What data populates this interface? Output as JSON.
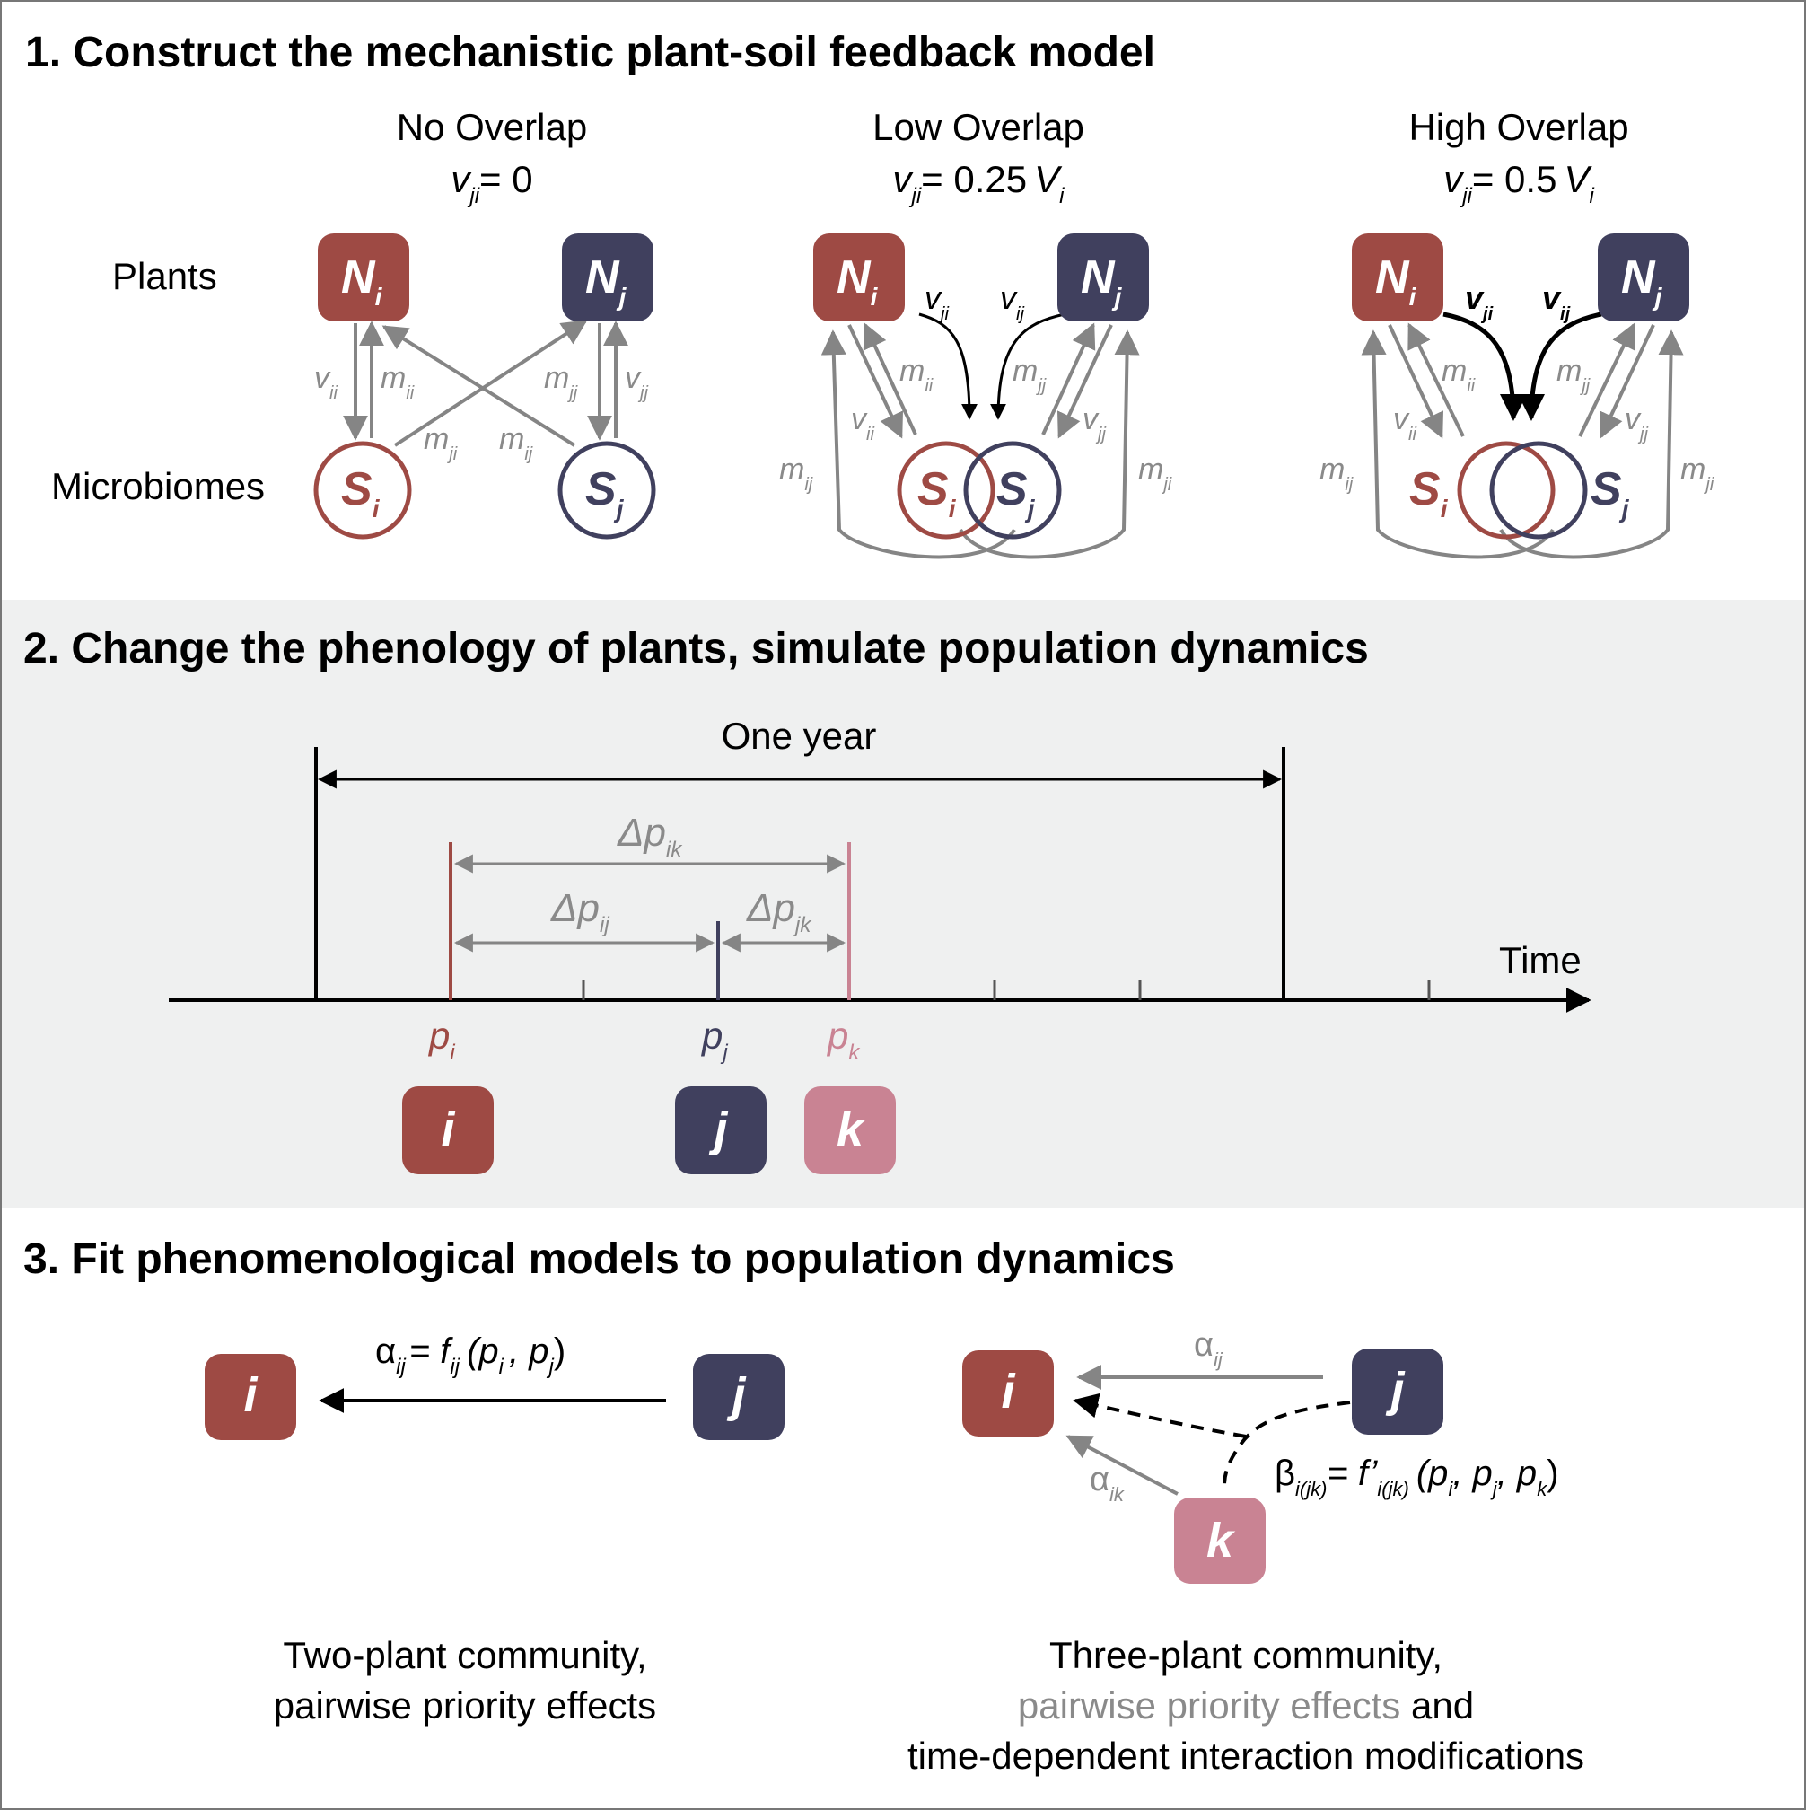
{
  "colors": {
    "plant_i": "#9e4a44",
    "plant_j": "#40405e",
    "plant_k": "#c98393",
    "gray_arrow": "#858585",
    "band_bg": "#eff0f0"
  },
  "section1": {
    "title": "1. Construct the mechanistic plant-soil feedback model",
    "row_plants": "Plants",
    "row_microbiomes": "Microbiomes",
    "panels": [
      {
        "title": "No Overlap",
        "formula_lhs": "v",
        "formula_sub": "ji",
        "formula_rhs": "= 0",
        "formula_V": "",
        "formula_V_sub": ""
      },
      {
        "title": "Low Overlap",
        "formula_lhs": "v",
        "formula_sub": "ji",
        "formula_rhs": "= 0.25",
        "formula_V": "V",
        "formula_V_sub": "i"
      },
      {
        "title": "High Overlap",
        "formula_lhs": "v",
        "formula_sub": "ji",
        "formula_rhs": "= 0.5",
        "formula_V": "V",
        "formula_V_sub": "i"
      }
    ],
    "node_N": "N",
    "node_S": "S",
    "sub_i": "i",
    "sub_j": "j",
    "label_v": "v",
    "label_m": "m",
    "sub_ii": "ii",
    "sub_jj": "jj",
    "sub_ij": "ij",
    "sub_ji": "ji"
  },
  "section2": {
    "title": "2. Change the phenology of plants, simulate population dynamics",
    "one_year": "One year",
    "time": "Time",
    "delta": "Δp",
    "sub_ik": "ik",
    "sub_ij": "ij",
    "sub_jk": "jk",
    "p": "p",
    "boxes": [
      "i",
      "j",
      "k"
    ],
    "p_subs": [
      "i",
      "j",
      "k"
    ]
  },
  "section3": {
    "title": "3. Fit phenomenological models to population dynamics",
    "alpha": "α",
    "beta": "β",
    "two_plant_eq_mid": "= f",
    "two_plant_eq_args_open": "(p",
    "two_plant_eq_args_comma": ", p",
    "two_plant_eq_args_close": ")",
    "three_eq_mid": "= f’",
    "three_eq_sub": "i(jk)",
    "three_eq_args": "(p",
    "three_eq_sep1": ", p",
    "three_eq_sep2": ", p",
    "three_eq_close": ")",
    "caption_left_line1": "Two-plant community,",
    "caption_left_line2": "pairwise priority effects",
    "caption_right_line1": "Three-plant community,",
    "caption_right_line2_gray": "pairwise priority effects",
    "caption_right_line2_black": " and",
    "caption_right_line3": "time-dependent interaction modifications"
  }
}
